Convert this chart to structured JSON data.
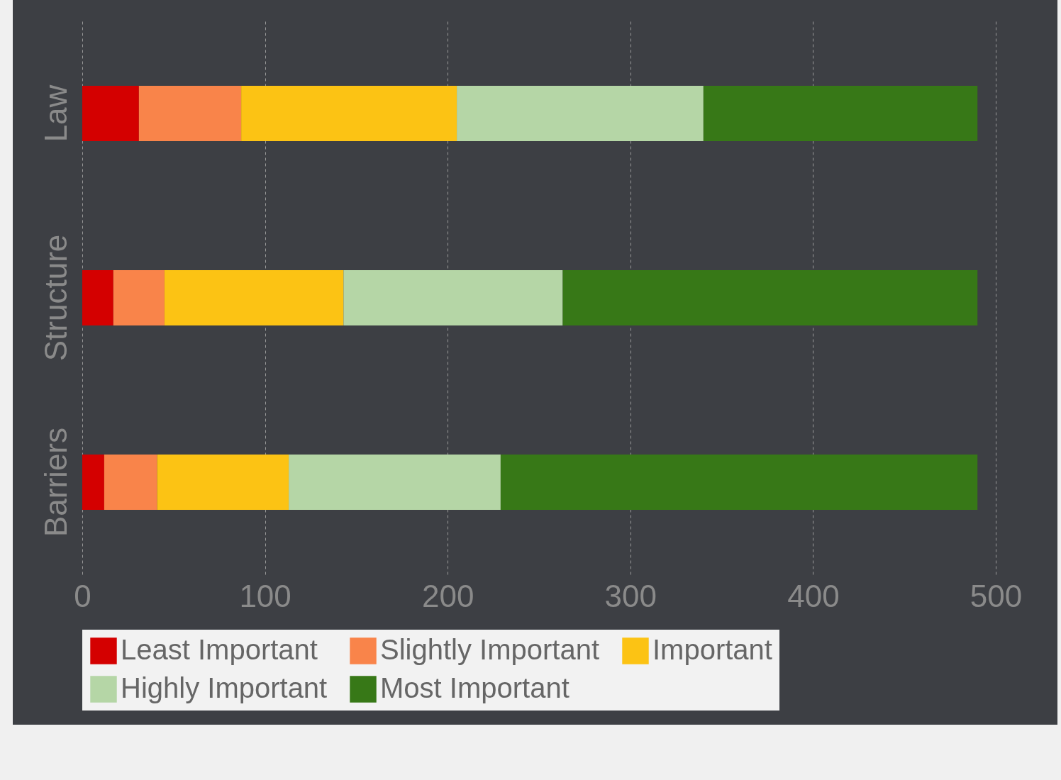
{
  "chart_data": {
    "type": "bar",
    "orientation": "horizontal",
    "stacked": true,
    "categories": [
      "Law",
      "Structure",
      "Barriers"
    ],
    "series": [
      {
        "name": "Least Important",
        "color": "#d40000",
        "values": [
          31,
          17,
          12
        ]
      },
      {
        "name": "Slightly Important",
        "color": "#f9844a",
        "values": [
          56,
          28,
          29
        ]
      },
      {
        "name": "Important",
        "color": "#fcc314",
        "values": [
          118,
          98,
          72
        ]
      },
      {
        "name": "Highly Important",
        "color": "#b5d6a6",
        "values": [
          135,
          120,
          116
        ]
      },
      {
        "name": "Most Important",
        "color": "#377817",
        "values": [
          150,
          227,
          261
        ]
      }
    ],
    "xlim": [
      0,
      500
    ],
    "xticks": [
      0,
      100,
      200,
      300,
      400,
      500
    ],
    "grid": "x",
    "legend": "bottom"
  }
}
